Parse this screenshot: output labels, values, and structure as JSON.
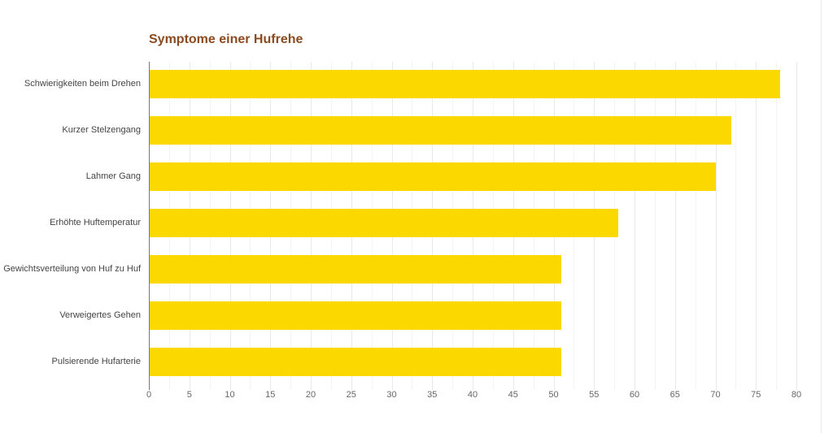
{
  "chart_data": {
    "type": "bar",
    "orientation": "horizontal",
    "title": "Symptome einer Hufrehe",
    "xlabel": "",
    "ylabel": "",
    "categories": [
      "Schwierigkeiten beim Drehen",
      "Kurzer Stelzengang",
      "Lahmer Gang",
      "Erhöhte Huftemperatur",
      "Gewichtsverteilung von Huf zu Huf",
      "Verweigertes Gehen",
      "Pulsierende Hufarterie"
    ],
    "values": [
      78,
      72,
      70,
      58,
      51,
      51,
      51
    ],
    "xlim": [
      0,
      80
    ],
    "xticks": [
      "0",
      "5",
      "10",
      "15",
      "20",
      "25",
      "30",
      "35",
      "40",
      "45",
      "50",
      "55",
      "60",
      "65",
      "70",
      "75",
      "80"
    ],
    "grid": true,
    "legend": null,
    "colors": {
      "bar": "#fbd900",
      "title": "#8a4b20"
    }
  }
}
